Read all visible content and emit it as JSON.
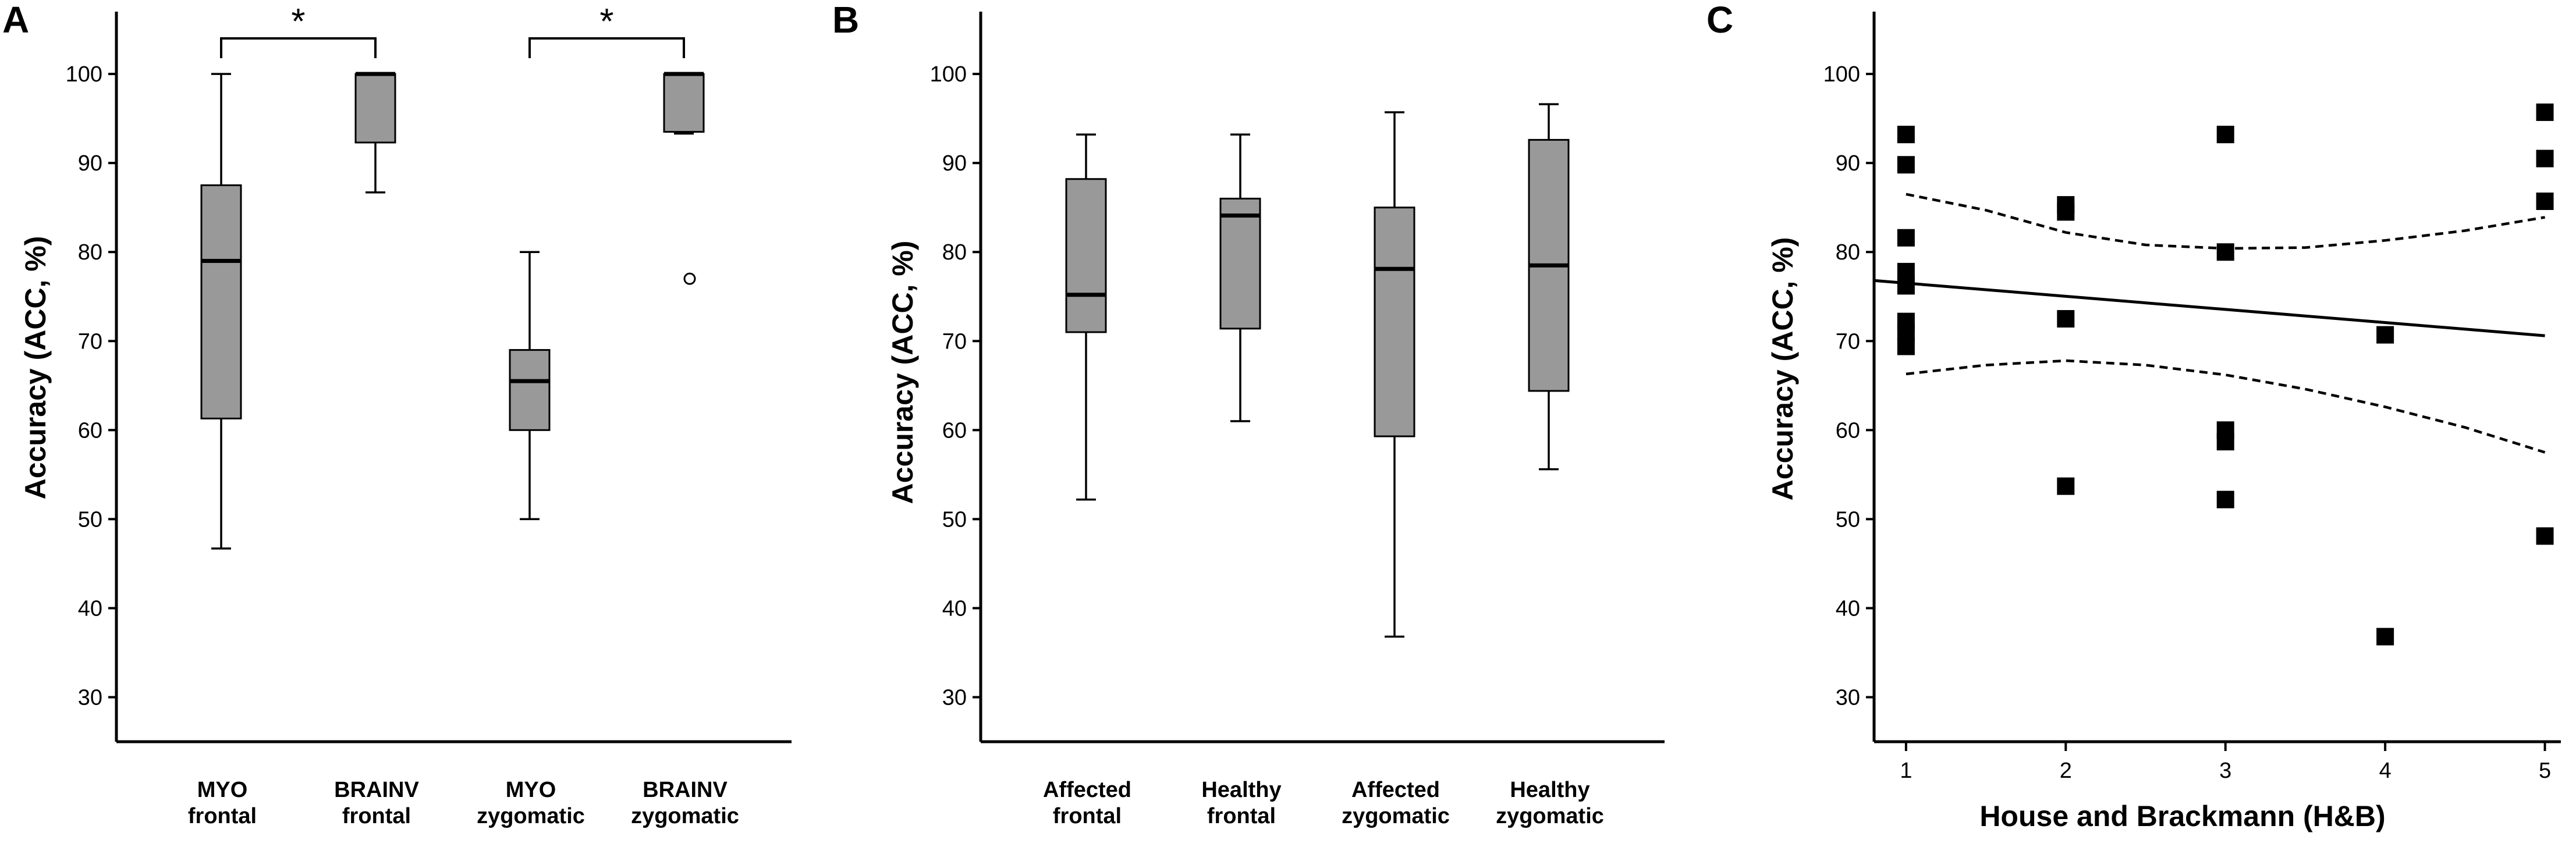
{
  "chart_data": [
    {
      "panel": "A",
      "type": "box",
      "ylabel": "Accuracy (ACC, %)",
      "ylim": [
        25,
        107
      ],
      "yticks": [
        30,
        40,
        50,
        60,
        70,
        80,
        90,
        100
      ],
      "categories": [
        [
          "MYO",
          "frontal"
        ],
        [
          "BRAINV",
          "frontal"
        ],
        [
          "MYO",
          "zygomatic"
        ],
        [
          "BRAINV",
          "zygomatic"
        ]
      ],
      "boxes": [
        {
          "min": 46.7,
          "q1": 61.3,
          "median": 79.0,
          "q3": 87.5,
          "max": 100,
          "outliers": []
        },
        {
          "min": 86.7,
          "q1": 92.3,
          "median": 100,
          "q3": 100,
          "max": 100,
          "outliers": []
        },
        {
          "min": 50.0,
          "q1": 60.0,
          "median": 65.5,
          "q3": 69.0,
          "max": 80.0,
          "outliers": []
        },
        {
          "min": 93.3,
          "q1": 93.5,
          "median": 100,
          "q3": 100,
          "max": 100,
          "outliers": [
            77.0
          ]
        }
      ],
      "significance": [
        {
          "from": 0,
          "to": 1,
          "label": "*"
        },
        {
          "from": 2,
          "to": 3,
          "label": "*"
        }
      ]
    },
    {
      "panel": "B",
      "type": "box",
      "ylabel": "Accuracy (ACC, %)",
      "ylim": [
        25,
        107
      ],
      "yticks": [
        30,
        40,
        50,
        60,
        70,
        80,
        90,
        100
      ],
      "categories": [
        [
          "Affected",
          "frontal"
        ],
        [
          "Healthy",
          "frontal"
        ],
        [
          "Affected",
          "zygomatic"
        ],
        [
          "Healthy",
          "zygomatic"
        ]
      ],
      "boxes": [
        {
          "min": 52.2,
          "q1": 71.0,
          "median": 75.2,
          "q3": 88.2,
          "max": 93.2,
          "outliers": []
        },
        {
          "min": 61.0,
          "q1": 71.4,
          "median": 84.1,
          "q3": 86.0,
          "max": 93.2,
          "outliers": []
        },
        {
          "min": 36.8,
          "q1": 59.3,
          "median": 78.1,
          "q3": 85.0,
          "max": 95.7,
          "outliers": []
        },
        {
          "min": 55.6,
          "q1": 64.4,
          "median": 78.5,
          "q3": 92.6,
          "max": 96.6,
          "outliers": []
        }
      ],
      "significance": []
    },
    {
      "panel": "C",
      "type": "scatter",
      "xlabel": "House and Brackmann (H&B)",
      "ylabel": "Accuracy (ACC, %)",
      "xlim": [
        0.8,
        5.1
      ],
      "ylim": [
        25,
        107
      ],
      "xticks": [
        1,
        2,
        3,
        4,
        5
      ],
      "yticks": [
        30,
        40,
        50,
        60,
        70,
        80,
        90,
        100
      ],
      "points": [
        {
          "x": 1,
          "y": 93.2
        },
        {
          "x": 1,
          "y": 89.8
        },
        {
          "x": 1,
          "y": 81.6
        },
        {
          "x": 1,
          "y": 77.8
        },
        {
          "x": 1,
          "y": 76.2
        },
        {
          "x": 1,
          "y": 72.2
        },
        {
          "x": 1,
          "y": 71.0
        },
        {
          "x": 1,
          "y": 69.4
        },
        {
          "x": 2,
          "y": 85.3
        },
        {
          "x": 2,
          "y": 84.5
        },
        {
          "x": 2,
          "y": 72.5
        },
        {
          "x": 2,
          "y": 53.7
        },
        {
          "x": 3,
          "y": 93.2
        },
        {
          "x": 3,
          "y": 80.0
        },
        {
          "x": 3,
          "y": 60.0
        },
        {
          "x": 3,
          "y": 58.7
        },
        {
          "x": 3,
          "y": 52.2
        },
        {
          "x": 4,
          "y": 70.7
        },
        {
          "x": 4,
          "y": 36.8
        },
        {
          "x": 5,
          "y": 95.7
        },
        {
          "x": 5,
          "y": 90.5
        },
        {
          "x": 5,
          "y": 85.7
        },
        {
          "x": 5,
          "y": 48.1
        }
      ],
      "regression": {
        "x": [
          0.8,
          5.0
        ],
        "y": [
          76.8,
          70.6
        ]
      },
      "ci_upper": {
        "x": [
          1.0,
          1.5,
          2.0,
          2.5,
          3.0,
          3.5,
          4.0,
          4.5,
          5.0
        ],
        "y": [
          86.5,
          84.7,
          82.2,
          80.8,
          80.4,
          80.5,
          81.3,
          82.4,
          83.9
        ]
      },
      "ci_lower": {
        "x": [
          1.0,
          1.5,
          2.0,
          2.5,
          3.0,
          3.5,
          4.0,
          4.5,
          5.0
        ],
        "y": [
          66.3,
          67.3,
          67.8,
          67.3,
          66.2,
          64.6,
          62.6,
          60.3,
          57.5
        ]
      }
    }
  ]
}
